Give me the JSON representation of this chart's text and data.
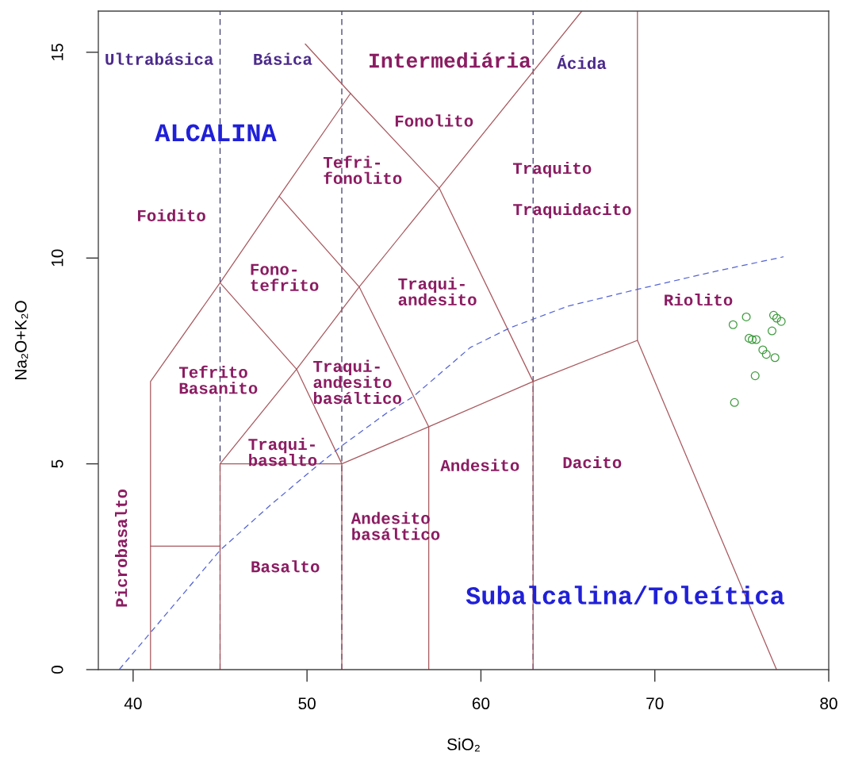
{
  "chart_data": {
    "type": "scatter",
    "xlabel": "SiO₂",
    "ylabel": "Na₂O+K₂O",
    "xlim": [
      38,
      80
    ],
    "ylim": [
      0,
      16
    ],
    "xticks": [
      40,
      50,
      60,
      70,
      80
    ],
    "yticks": [
      0,
      5,
      10,
      15
    ],
    "series": [
      {
        "type": "line",
        "color": "#a8585e",
        "x": [
          41,
          41,
          45,
          48.4,
          52.5
        ],
        "values": [
          0,
          7,
          9.4,
          11.5,
          14
        ]
      },
      {
        "type": "line",
        "color": "#a8585e",
        "x": [
          49.9,
          52.5,
          57.6,
          63
        ],
        "values": [
          15.2,
          14,
          11.7,
          7
        ]
      },
      {
        "type": "line",
        "color": "#a8585e",
        "x": [
          41,
          45
        ],
        "values": [
          3,
          3
        ]
      },
      {
        "type": "line",
        "color": "#a8585e",
        "x": [
          45,
          45,
          52,
          57,
          63,
          69,
          77
        ],
        "values": [
          0,
          5,
          5,
          5.9,
          7,
          8,
          0
        ]
      },
      {
        "type": "line",
        "color": "#a8585e",
        "x": [
          45,
          49.4,
          52,
          52
        ],
        "values": [
          9.4,
          7.3,
          5,
          0
        ]
      },
      {
        "type": "line",
        "color": "#a8585e",
        "x": [
          48.4,
          53,
          57,
          57
        ],
        "values": [
          11.5,
          9.3,
          5.9,
          0
        ]
      },
      {
        "type": "line",
        "color": "#a8585e",
        "x": [
          45,
          49.4,
          53,
          57.6,
          65.8
        ],
        "values": [
          5,
          7.3,
          9.3,
          11.7,
          16
        ]
      },
      {
        "type": "line",
        "color": "#a8585e",
        "x": [
          63,
          63
        ],
        "values": [
          7,
          0
        ]
      },
      {
        "type": "line",
        "color": "#a8585e",
        "x": [
          69,
          69
        ],
        "values": [
          8,
          16
        ]
      },
      {
        "type": "line",
        "color": "#5464d4",
        "line_style": "dashed",
        "x": [
          39.2,
          41,
          45,
          47.9,
          50.6,
          52.1,
          54.6,
          56.1,
          59.4,
          61.7,
          65,
          69,
          73.3,
          77.4
        ],
        "values": [
          0,
          0.9,
          2.9,
          4.0,
          4.96,
          5.47,
          6.24,
          6.63,
          7.83,
          8.31,
          8.83,
          9.24,
          9.66,
          10.03
        ]
      },
      {
        "color": "#3f9b3f",
        "marker": "circle",
        "x": [
          75.26,
          74.5,
          76.83,
          77.01,
          77.27,
          76.74,
          75.42,
          75.6,
          75.83,
          76.21,
          76.41,
          76.91,
          75.77,
          74.58
        ],
        "values": [
          8.57,
          8.38,
          8.61,
          8.54,
          8.46,
          8.23,
          8.05,
          8.02,
          8.02,
          7.77,
          7.66,
          7.58,
          7.14,
          6.49
        ]
      }
    ],
    "ref_lines": [
      {
        "axis": "x",
        "value": 45,
        "color": "#3a3a6e",
        "line_style": "dashed"
      },
      {
        "axis": "x",
        "value": 52,
        "color": "#3a3a6e",
        "line_style": "dashed"
      },
      {
        "axis": "x",
        "value": 63,
        "color": "#3a3a6e",
        "line_style": "dashed"
      }
    ],
    "annotations": [
      "Ultrabásica",
      "Básica",
      "Intermediária",
      "Ácida",
      "ALCALINA",
      "Fonolito",
      "Tefri-\nfonolito",
      "Traquito",
      "Foidito",
      "Traquidacito",
      "Fono-\ntefrito",
      "Traqui-\nandesito",
      "Riolito",
      "Tefrito\nBasanito",
      "Traqui-\nandesito\nbasáltico",
      "Traqui-\nbasalto",
      "Andesito",
      "Dacito",
      "Andesito\nbasáltico",
      "Picrobasalto",
      "Basalto",
      "Subalcalina/Toleítica"
    ]
  }
}
